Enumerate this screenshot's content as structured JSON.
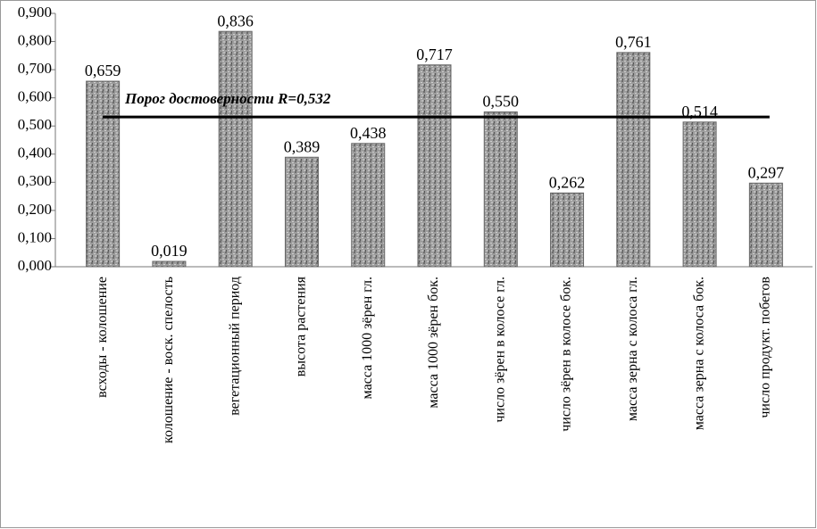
{
  "chart_data": {
    "type": "bar",
    "categories": [
      "всходы - колошение",
      "колошение - воск. спелость",
      "вегетационный период",
      "высота растения",
      "масса 1000 зёрен гл.",
      "масса 1000 зёрен бок.",
      "число зёрен в колосе гл.",
      "число зёрен в колосе бок.",
      "масса зерна с колоса гл.",
      "масса зерна с колоса бок.",
      "число продукт. побегов"
    ],
    "values": [
      0.659,
      0.019,
      0.836,
      0.389,
      0.438,
      0.717,
      0.55,
      0.262,
      0.761,
      0.514,
      0.297
    ],
    "value_labels": [
      "0,659",
      "0,019",
      "0,836",
      "0,389",
      "0,438",
      "0,717",
      "0,550",
      "0,262",
      "0,761",
      "0,514",
      "0,297"
    ],
    "color": "#9c9c9c",
    "ylim": [
      0,
      0.9
    ],
    "yticks": [
      {
        "value": 0,
        "label": "0,000"
      },
      {
        "value": 0.1,
        "label": "0,100"
      },
      {
        "value": 0.2,
        "label": "0,200"
      },
      {
        "value": 0.3,
        "label": "0,300"
      },
      {
        "value": 0.4,
        "label": "0,400"
      },
      {
        "value": 0.5,
        "label": "0,500"
      },
      {
        "value": 0.6,
        "label": "0,600"
      },
      {
        "value": 0.7,
        "label": "0,700"
      },
      {
        "value": 0.8,
        "label": "0,800"
      },
      {
        "value": 0.9,
        "label": "0,900"
      }
    ],
    "threshold": {
      "value": 0.532,
      "label": "Порог достоверности R=0,532"
    }
  }
}
